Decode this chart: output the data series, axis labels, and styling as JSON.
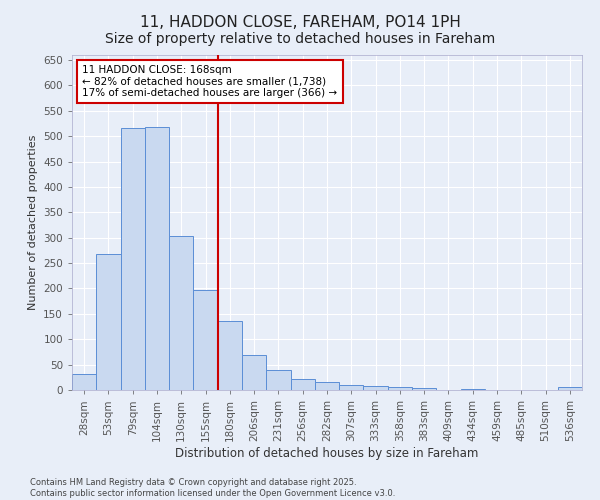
{
  "title": "11, HADDON CLOSE, FAREHAM, PO14 1PH",
  "subtitle": "Size of property relative to detached houses in Fareham",
  "xlabel": "Distribution of detached houses by size in Fareham",
  "ylabel": "Number of detached properties",
  "categories": [
    "28sqm",
    "53sqm",
    "79sqm",
    "104sqm",
    "130sqm",
    "155sqm",
    "180sqm",
    "206sqm",
    "231sqm",
    "256sqm",
    "282sqm",
    "307sqm",
    "333sqm",
    "358sqm",
    "383sqm",
    "409sqm",
    "434sqm",
    "459sqm",
    "485sqm",
    "510sqm",
    "536sqm"
  ],
  "values": [
    32,
    267,
    516,
    519,
    304,
    198,
    135,
    68,
    40,
    22,
    15,
    9,
    7,
    5,
    3,
    0,
    1,
    0,
    0,
    0,
    5
  ],
  "bar_color": "#c9d9f0",
  "bar_edge_color": "#5b8ed6",
  "background_color": "#e8eef8",
  "grid_color": "#ffffff",
  "vline_color": "#cc0000",
  "vline_x": 5.5,
  "annotation_text": "11 HADDON CLOSE: 168sqm\n← 82% of detached houses are smaller (1,738)\n17% of semi-detached houses are larger (366) →",
  "annotation_box_facecolor": "white",
  "annotation_box_edgecolor": "#cc0000",
  "ylim": [
    0,
    660
  ],
  "yticks": [
    0,
    50,
    100,
    150,
    200,
    250,
    300,
    350,
    400,
    450,
    500,
    550,
    600,
    650
  ],
  "footer": "Contains HM Land Registry data © Crown copyright and database right 2025.\nContains public sector information licensed under the Open Government Licence v3.0.",
  "title_fontsize": 11,
  "subtitle_fontsize": 10,
  "xlabel_fontsize": 8.5,
  "ylabel_fontsize": 8,
  "tick_fontsize": 7.5,
  "annotation_fontsize": 7.5,
  "footer_fontsize": 6
}
